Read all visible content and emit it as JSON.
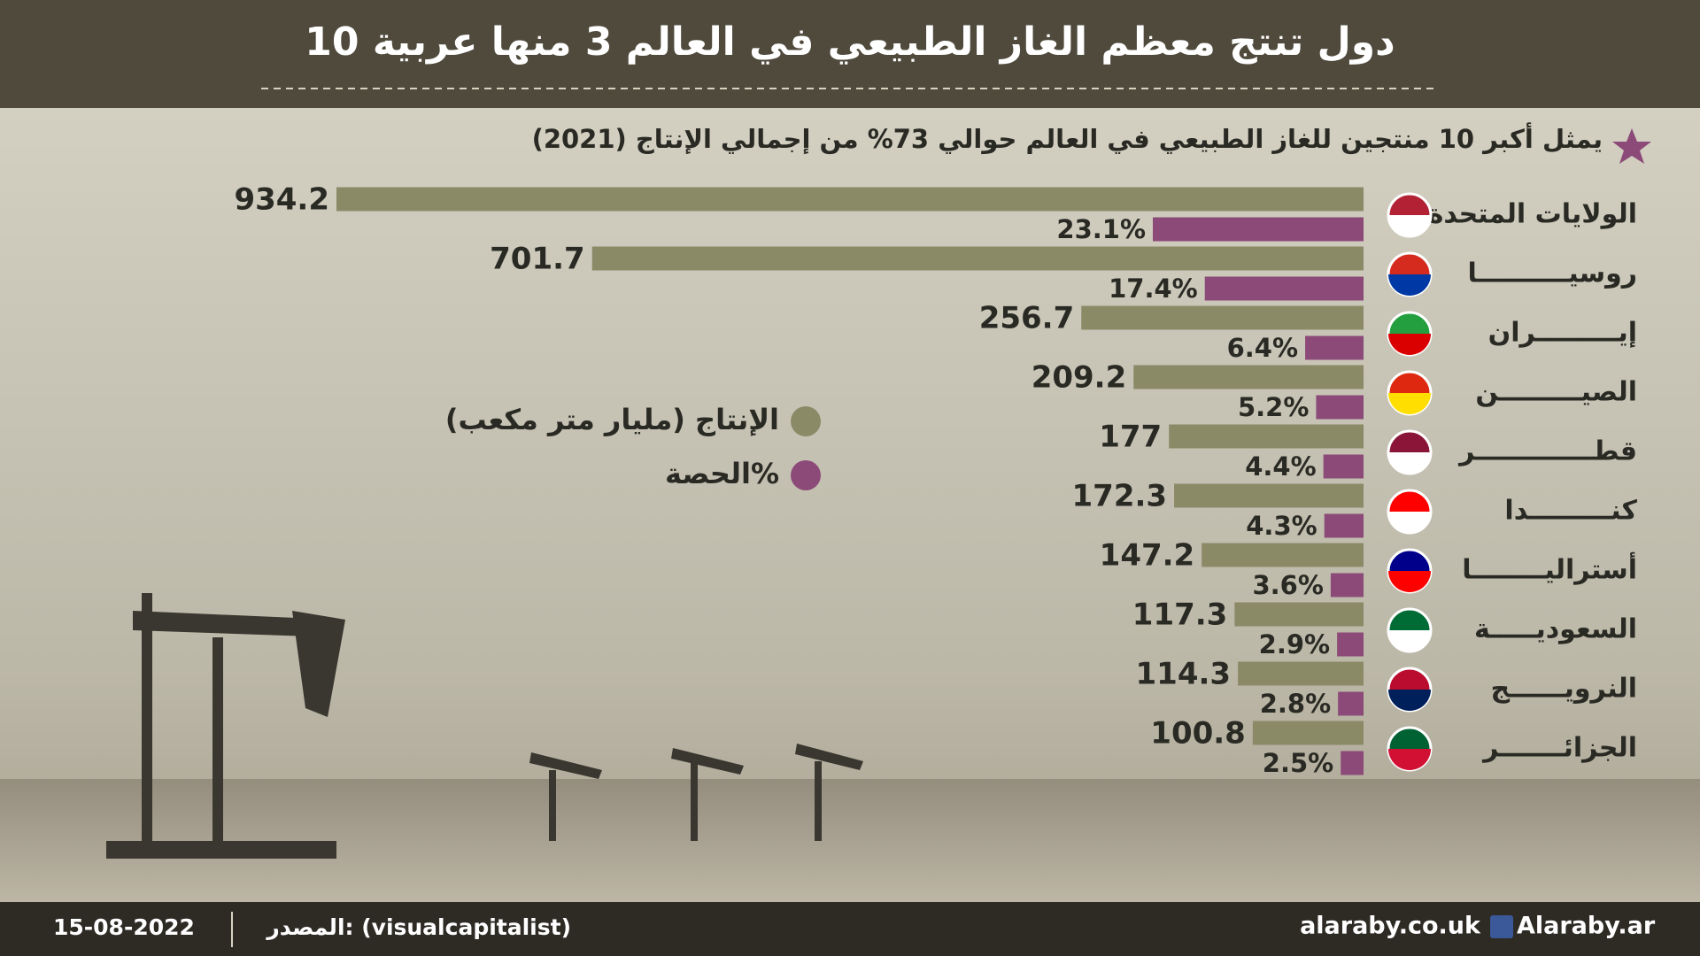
{
  "chart_data": {
    "type": "bar",
    "orientation": "horizontal",
    "title": "10 دول تنتج معظم الغاز الطبيعي في العالم 3 منها عربية",
    "subtitle": "يمثل أكبر 10 منتجين للغاز الطبيعي في العالم حوالي 73% من إجمالي الإنتاج (2021)",
    "categories": [
      "الولايات المتحدة",
      "روسيــــــــــا",
      "إيـــــــــران",
      "الصيـــــــــن",
      "قطـــــــــــــر",
      "كنـــــــــدا",
      "أستراليــــــــا",
      "السعوديـــــة",
      "النرويــــــج",
      "الجزائـــــــر"
    ],
    "series": [
      {
        "name": "الإنتاج (مليار متر مكعب)",
        "color": "#8b8a67",
        "values": [
          934.2,
          701.7,
          256.7,
          209.2,
          177,
          172.3,
          147.2,
          117.3,
          114.3,
          100.8
        ]
      },
      {
        "name": "الحصة%",
        "color": "#8c4a78",
        "values": [
          23.1,
          17.4,
          6.4,
          5.2,
          4.4,
          4.3,
          3.6,
          2.9,
          2.8,
          2.5
        ],
        "value_labels": [
          "23.1%",
          "17.4%",
          "6.4%",
          "5.2%",
          "4.4%",
          "4.3%",
          "3.6%",
          "2.9%",
          "2.8%",
          "2.5%"
        ]
      }
    ],
    "footer": {
      "date": "15-08-2022",
      "source": "المصدر: (visualcapitalist)",
      "website": "alaraby.co.uk",
      "social": "Alaraby.ar"
    }
  }
}
